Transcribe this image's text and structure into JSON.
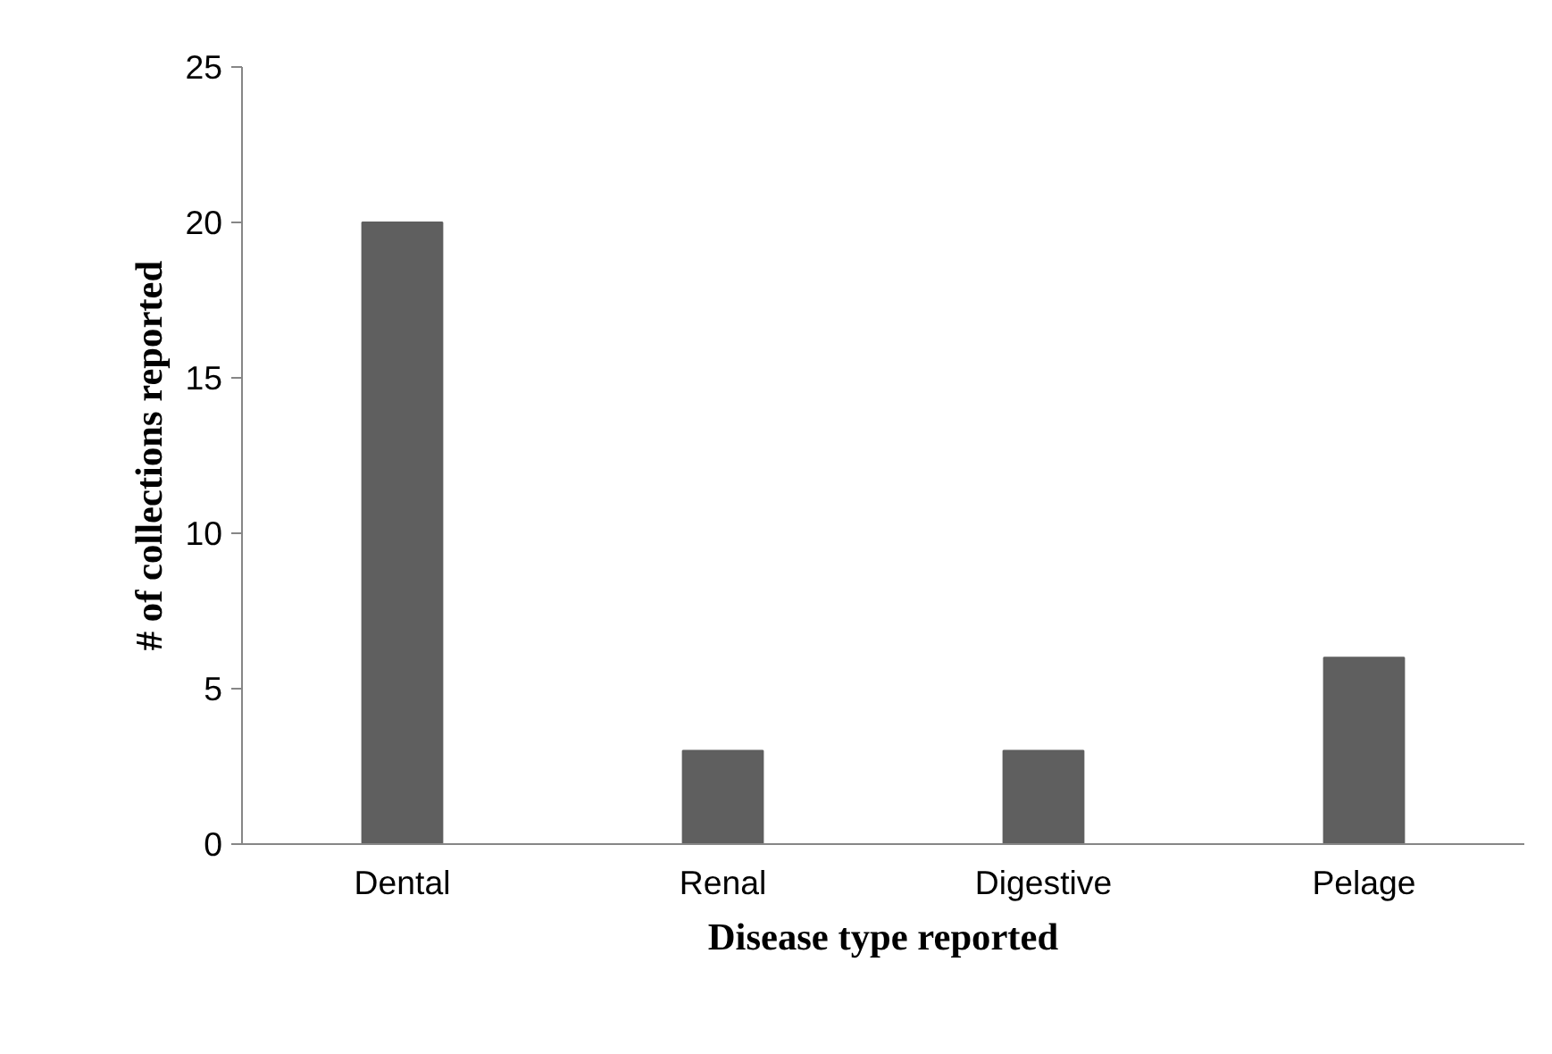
{
  "chart_data": {
    "type": "bar",
    "xlabel": "Disease type reported",
    "ylabel": "# of collections reported",
    "categories": [
      "Dental",
      "Renal",
      "Digestive",
      "Pelage"
    ],
    "values": [
      20,
      3,
      3,
      6
    ],
    "color": "#5f5f5f",
    "ylim": [
      0,
      25
    ],
    "yticks": [
      0,
      5,
      10,
      15,
      20,
      25
    ],
    "grid": false
  }
}
